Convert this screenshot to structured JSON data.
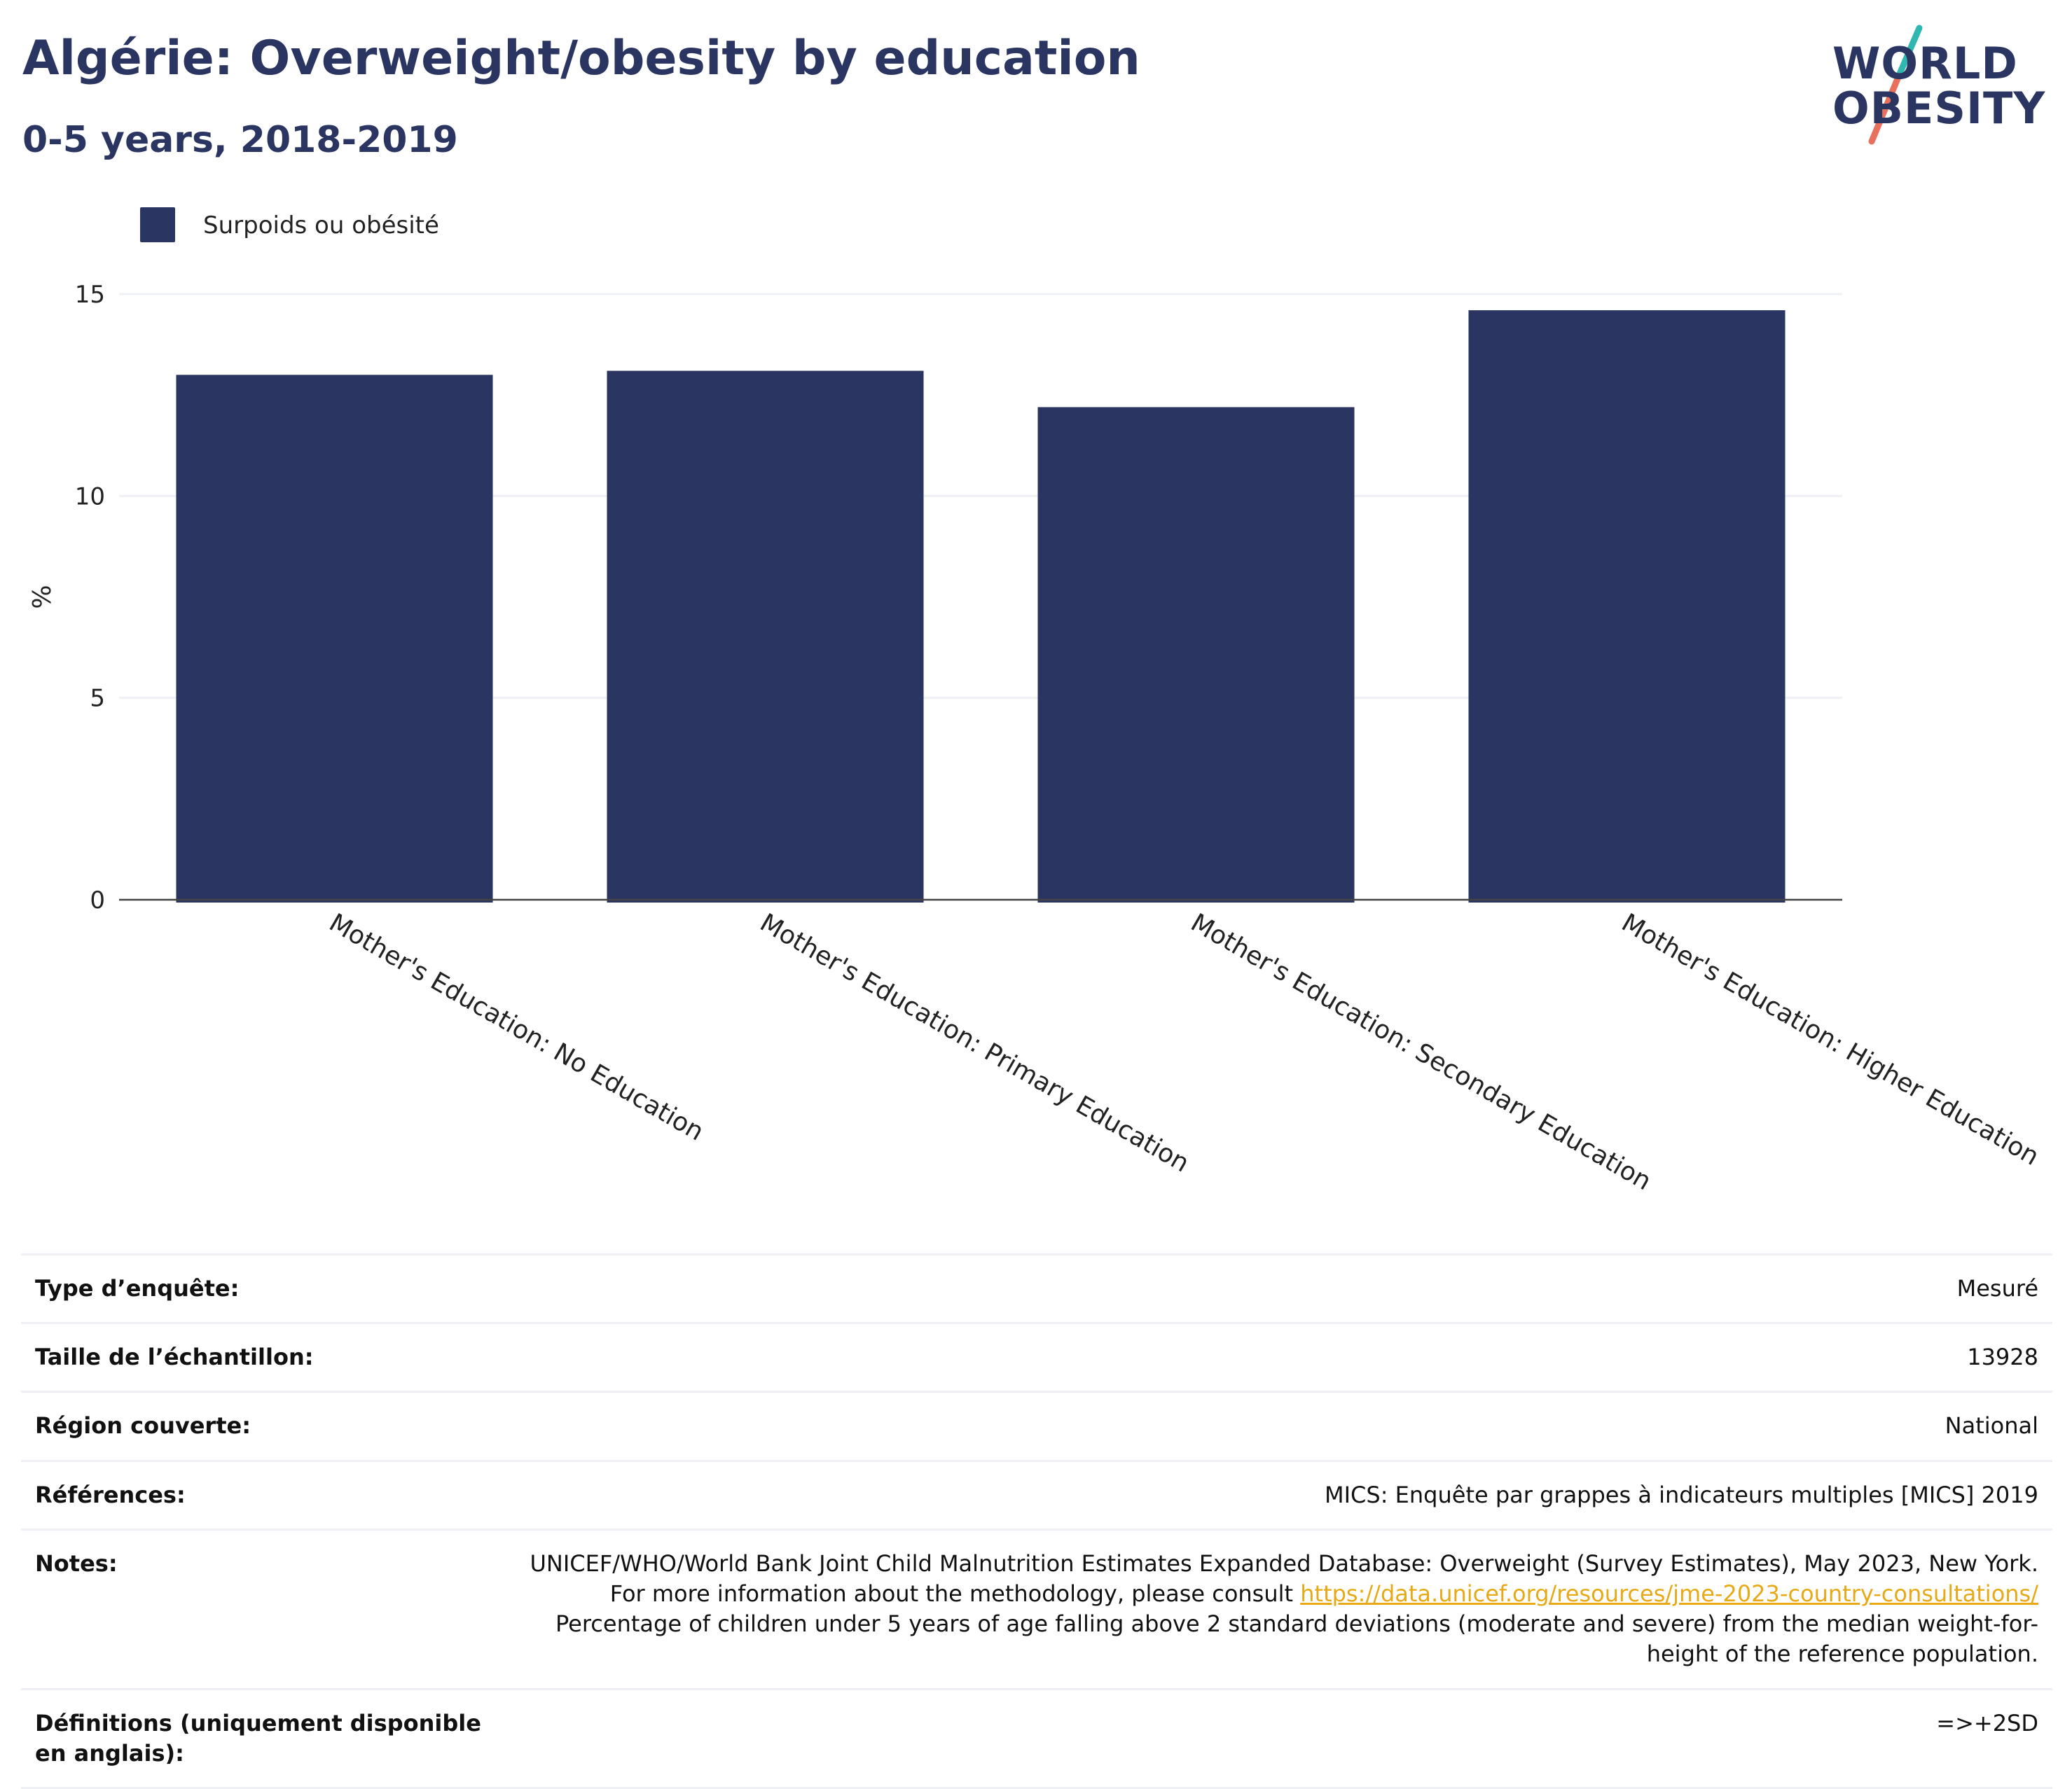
{
  "header": {
    "title": "Algérie: Overweight/obesity by education",
    "subtitle": "0-5 years, 2018-2019"
  },
  "logo": {
    "line1": "WORLD",
    "line2": "OBESITY",
    "colors": {
      "text": "#2b3561",
      "slash_top": "#2fb7b0",
      "slash_bottom": "#e9705c"
    }
  },
  "legend": {
    "label": "Surpoids ou obésité",
    "color": "#2b3561"
  },
  "chart_data": {
    "type": "bar",
    "categories": [
      "Mother's Education: No Education",
      "Mother's Education: Primary Education",
      "Mother's Education: Secondary Education",
      "Mother's Education: Higher Education"
    ],
    "series": [
      {
        "name": "Surpoids ou obésité",
        "values": [
          13.0,
          13.1,
          12.2,
          14.6
        ],
        "color": "#2b3561"
      }
    ],
    "title": "Algérie: Overweight/obesity by education",
    "subtitle": "0-5 years, 2018-2019",
    "xlabel": "",
    "ylabel": "%",
    "ylim": [
      0,
      15
    ],
    "yticks": [
      0,
      5,
      10,
      15
    ],
    "grid": true,
    "legend_position": "top-left"
  },
  "info": {
    "rows": [
      {
        "key": "Type d’enquête:",
        "value": "Mesuré"
      },
      {
        "key": "Taille de l’échantillon:",
        "value": "13928"
      },
      {
        "key": "Région couverte:",
        "value": "National"
      },
      {
        "key": "Références:",
        "value": "MICS: Enquête par grappes à indicateurs multiples [MICS] 2019"
      }
    ],
    "notes": {
      "key": "Notes:",
      "text_before": "UNICEF/WHO/World Bank Joint Child Malnutrition Estimates Expanded Database: Overweight (Survey Estimates), May 2023, New York. For more information about the methodology, please consult ",
      "link": "https://data.unicef.org/resources/jme-2023-country-consultations/",
      "text_after": " Percentage of children under 5 years of age falling above 2 standard deviations (moderate and severe) from the median weight-for-height of the reference population."
    },
    "definitions": {
      "key": "Définitions (uniquement disponible en anglais):",
      "value": "=>+2SD"
    }
  }
}
